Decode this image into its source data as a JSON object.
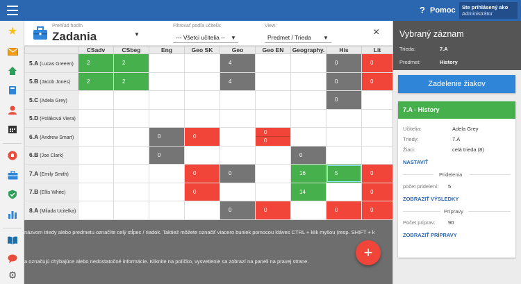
{
  "topbar": {
    "help_icon": "?",
    "help_label": "Pomoc",
    "user_line1": "Ste prihlásený ako",
    "user_line2": "Administrátor"
  },
  "sidebar": {
    "icons": [
      "star-icon",
      "mail-icon",
      "home-icon",
      "book-icon",
      "user-icon",
      "calendar-icon",
      "hand-icon",
      "briefcase-icon",
      "shield-check-icon",
      "bar-chart-icon",
      "open-book-icon",
      "chat-icon",
      "settings-icon"
    ]
  },
  "header": {
    "small_label": "Prehľad hodín",
    "title": "Zadania",
    "filter_label": "Filtrovať podľa učiteľa:",
    "filter_value": "--- Všetci učitelia --",
    "view_label": "View:",
    "view_value": "Predmet / Trieda",
    "close_icon": "×"
  },
  "table": {
    "columns": [
      "CSadv",
      "CSbeg",
      "Eng",
      "Geo SK",
      "Geo",
      "Geo EN",
      "Geography.",
      "His",
      "Lit"
    ],
    "rows": [
      {
        "cls": "5.A",
        "teacher": "(Lucas Greeen)",
        "cells": [
          [
            "g",
            "2"
          ],
          [
            "g",
            "2"
          ],
          [
            "",
            ""
          ],
          [
            "",
            ""
          ],
          [
            "d",
            "4"
          ],
          [
            "",
            ""
          ],
          [
            "",
            ""
          ],
          [
            "d",
            "0"
          ],
          [
            "r",
            "0"
          ]
        ]
      },
      {
        "cls": "5.B",
        "teacher": "(Jacob Jones)",
        "cells": [
          [
            "g",
            "2"
          ],
          [
            "g",
            "2"
          ],
          [
            "",
            ""
          ],
          [
            "",
            ""
          ],
          [
            "d",
            "4"
          ],
          [
            "",
            ""
          ],
          [
            "",
            ""
          ],
          [
            "d",
            "0"
          ],
          [
            "r",
            "0"
          ]
        ]
      },
      {
        "cls": "5.C",
        "teacher": "(Adela Grey)",
        "cells": [
          [
            "",
            ""
          ],
          [
            "",
            ""
          ],
          [
            "",
            ""
          ],
          [
            "",
            ""
          ],
          [
            "",
            ""
          ],
          [
            "",
            ""
          ],
          [
            "",
            ""
          ],
          [
            "d",
            "0"
          ],
          [
            "",
            ""
          ]
        ]
      },
      {
        "cls": "5.D",
        "teacher": "(Poláková Viera)",
        "cells": [
          [
            "",
            ""
          ],
          [
            "",
            ""
          ],
          [
            "",
            ""
          ],
          [
            "",
            ""
          ],
          [
            "",
            ""
          ],
          [
            "",
            ""
          ],
          [
            "",
            ""
          ],
          [
            "",
            ""
          ],
          [
            "",
            ""
          ]
        ]
      },
      {
        "cls": "6.A",
        "teacher": "(Andrew Smart)",
        "cells": [
          [
            "",
            ""
          ],
          [
            "",
            ""
          ],
          [
            "d",
            "0"
          ],
          [
            "r",
            "0"
          ],
          [
            "",
            ""
          ],
          [
            "split",
            "0",
            "0"
          ],
          [
            "",
            ""
          ],
          [
            "",
            ""
          ],
          [
            "",
            ""
          ]
        ]
      },
      {
        "cls": "6.B",
        "teacher": "(Joe Clark)",
        "cells": [
          [
            "",
            ""
          ],
          [
            "",
            ""
          ],
          [
            "d",
            "0"
          ],
          [
            "",
            ""
          ],
          [
            "",
            ""
          ],
          [
            "",
            ""
          ],
          [
            "d",
            "0"
          ],
          [
            "",
            ""
          ],
          [
            "",
            ""
          ]
        ]
      },
      {
        "cls": "7.A",
        "teacher": "(Emily Smith)",
        "cells": [
          [
            "",
            ""
          ],
          [
            "",
            ""
          ],
          [
            "",
            ""
          ],
          [
            "r",
            "0"
          ],
          [
            "d",
            "0"
          ],
          [
            "",
            ""
          ],
          [
            "g",
            "16"
          ],
          [
            "gs",
            "5"
          ],
          [
            "r",
            "0"
          ]
        ]
      },
      {
        "cls": "7.B",
        "teacher": "(Ellis White)",
        "cells": [
          [
            "",
            ""
          ],
          [
            "",
            ""
          ],
          [
            "",
            ""
          ],
          [
            "r",
            "0"
          ],
          [
            "",
            ""
          ],
          [
            "",
            ""
          ],
          [
            "g",
            "14"
          ],
          [
            "",
            ""
          ],
          [
            "r",
            "0"
          ]
        ]
      },
      {
        "cls": "8.A",
        "teacher": "(Milada Ucitelka)",
        "cells": [
          [
            "",
            ""
          ],
          [
            "",
            ""
          ],
          [
            "",
            ""
          ],
          [
            "",
            ""
          ],
          [
            "d",
            "0"
          ],
          [
            "r",
            "0"
          ],
          [
            "",
            ""
          ],
          [
            "r",
            "0"
          ],
          [
            "r",
            "0"
          ]
        ]
      }
    ]
  },
  "info": {
    "line1": "názvom triedy alebo predmetu označíte celý stĺpec / riadok. Taktiež môžete označiť viacero buniek pomocou kláves CTRL + klik myšou (resp. SHIFT + k",
    "line2": "a označujú chýbajúce alebo nedostatočné informácie. Kliknite na políčko, vysvetlenie sa zobrazí na paneli na pravej strane."
  },
  "fab_label": "+",
  "panel": {
    "title": "Vybraný záznam",
    "trieda_label": "Trieda:",
    "trieda_value": "7.A",
    "predmet_label": "Predmet:",
    "predmet_value": "History",
    "button_label": "Zadelenie žiakov",
    "card": {
      "header": "7.A - History",
      "ucitelia_label": "Učitelia:",
      "ucitelia_value": "Adela Grey",
      "triedy_label": "Triedy:",
      "triedy_value": "7.A",
      "ziaci_label": "Žiaci:",
      "ziaci_value": "celá trieda (8)",
      "link_nastavit": "NASTAVIŤ",
      "pridelenia_title": "Pridelenia",
      "pridelenia_label": "počet pridelení:",
      "pridelenia_value": "5",
      "link_vysledky": "ZOBRAZIŤ VÝSLEDKY",
      "pripravy_title": "Prípravy",
      "pripravy_label": "Počet príprav:",
      "pripravy_value": "90",
      "link_pripravy": "ZOBRAZIŤ PRÍPRAVY"
    }
  },
  "colors": {
    "topbar": "#2b66b0",
    "green": "#46b04c",
    "red": "#f1453a",
    "dark": "#757575"
  }
}
